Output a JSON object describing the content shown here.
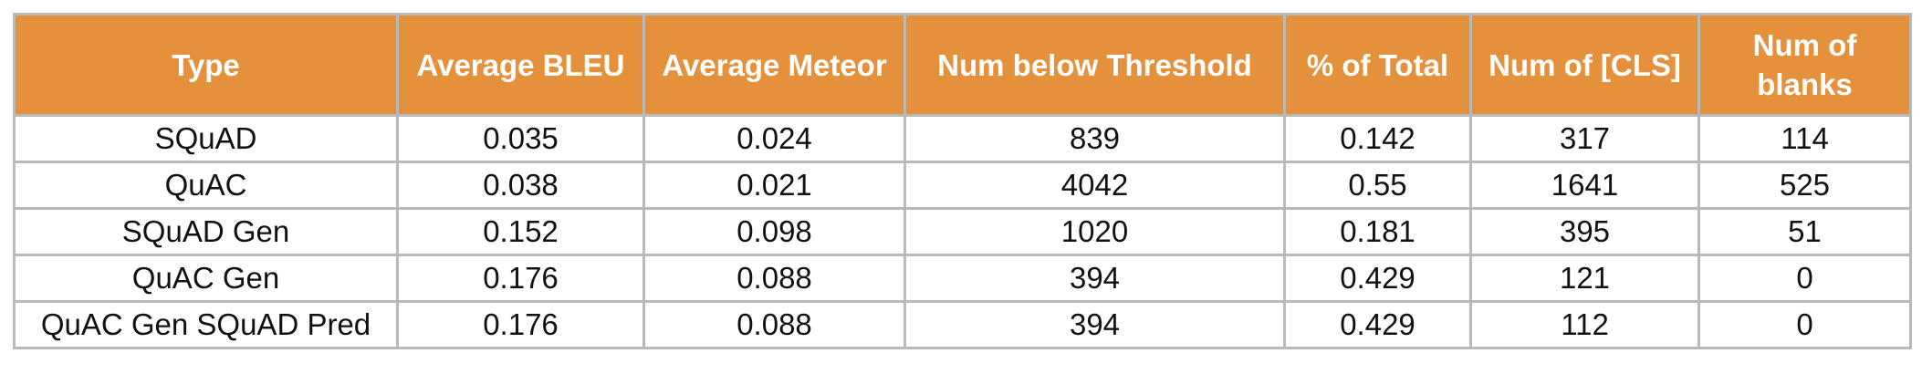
{
  "table": {
    "header_color": "#e5903a",
    "headers": [
      "Type",
      "Average BLEU",
      "Average Meteor",
      "Num below Threshold",
      "% of Total",
      "Num of [CLS]",
      "Num of blanks"
    ],
    "rows": [
      [
        "SQuAD",
        "0.035",
        "0.024",
        "839",
        "0.142",
        "317",
        "114"
      ],
      [
        "QuAC",
        "0.038",
        "0.021",
        "4042",
        "0.55",
        "1641",
        "525"
      ],
      [
        "SQuAD Gen",
        "0.152",
        "0.098",
        "1020",
        "0.181",
        "395",
        "51"
      ],
      [
        "QuAC Gen",
        "0.176",
        "0.088",
        "394",
        "0.429",
        "121",
        "0"
      ],
      [
        "QuAC Gen SQuAD Pred",
        "0.176",
        "0.088",
        "394",
        "0.429",
        "112",
        "0"
      ]
    ]
  }
}
